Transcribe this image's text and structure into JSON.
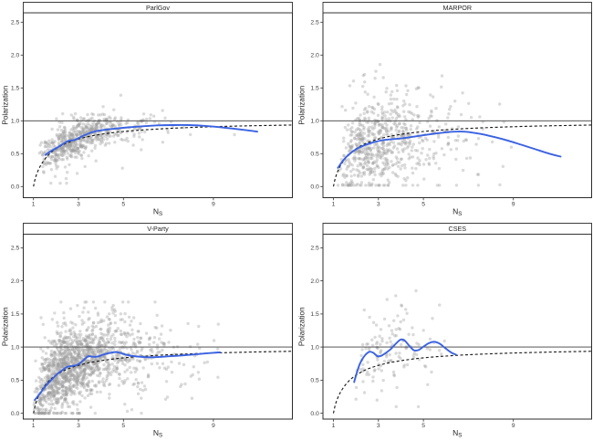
{
  "figure": {
    "background": "#ffffff"
  },
  "style": {
    "accent_blue": "#3a62e2",
    "scatter_color": "#9e9e9e",
    "scatter_opacity": 0.38,
    "dashed_color": "#151515",
    "hline_color": "#3d3d3d",
    "border_color": "#2b2b2b",
    "tick_text_color": "#404040",
    "title_text_color": "#262626"
  },
  "axes": {
    "x_label": "N",
    "x_label_sub": "S",
    "y_label": "Polarization",
    "x_ticks": [
      1,
      3,
      5,
      9
    ],
    "y_tick_labels": [
      "0.0",
      "0.5",
      "1.0",
      "1.5",
      "2.0",
      "2.5"
    ],
    "y_tick_values": [
      0,
      0.5,
      1,
      1.5,
      2,
      2.5
    ],
    "x_range": [
      0.55,
      12.55
    ],
    "y_range": [
      -0.15,
      2.65
    ],
    "hline_y": 1.0,
    "grid": "off",
    "legend": "none"
  },
  "chart_data": [
    {
      "type": "scatter",
      "title": "ParlGov",
      "loess": [
        [
          1.53,
          0.48
        ],
        [
          1.8,
          0.545
        ],
        [
          2.07,
          0.595
        ],
        [
          2.35,
          0.655
        ],
        [
          2.55,
          0.695
        ],
        [
          2.8,
          0.705
        ],
        [
          3.0,
          0.735
        ],
        [
          3.2,
          0.77
        ],
        [
          3.6,
          0.825
        ],
        [
          4.0,
          0.855
        ],
        [
          4.6,
          0.88
        ],
        [
          5.2,
          0.9
        ],
        [
          5.8,
          0.915
        ],
        [
          6.5,
          0.93
        ],
        [
          7.2,
          0.935
        ],
        [
          7.9,
          0.935
        ],
        [
          8.6,
          0.923
        ],
        [
          9.2,
          0.905
        ],
        [
          9.9,
          0.88
        ],
        [
          10.5,
          0.855
        ],
        [
          10.95,
          0.835
        ]
      ],
      "scatter_summary": {
        "n": 620,
        "x_logmean": 1.12,
        "x_logsd": 0.36,
        "x_range": [
          1.25,
          11.0
        ],
        "y_sd": 0.125,
        "p_wide": 0.12,
        "y_sd_wide": 0.3,
        "y_range": [
          0.05,
          1.52
        ],
        "seed": 101
      }
    },
    {
      "type": "scatter",
      "title": "MARPOR",
      "loess": [
        [
          1.2,
          0.285
        ],
        [
          1.45,
          0.405
        ],
        [
          1.7,
          0.49
        ],
        [
          2.0,
          0.565
        ],
        [
          2.4,
          0.63
        ],
        [
          2.8,
          0.675
        ],
        [
          3.2,
          0.705
        ],
        [
          3.6,
          0.72
        ],
        [
          4.0,
          0.732
        ],
        [
          4.5,
          0.755
        ],
        [
          5.0,
          0.78
        ],
        [
          5.5,
          0.805
        ],
        [
          6.0,
          0.825
        ],
        [
          6.4,
          0.835
        ],
        [
          6.8,
          0.835
        ],
        [
          7.2,
          0.82
        ],
        [
          7.7,
          0.79
        ],
        [
          8.2,
          0.75
        ],
        [
          8.8,
          0.695
        ],
        [
          9.4,
          0.63
        ],
        [
          10.0,
          0.565
        ],
        [
          10.6,
          0.5
        ],
        [
          11.1,
          0.455
        ]
      ],
      "scatter_summary": {
        "n": 680,
        "x_logmean": 1.13,
        "x_logsd": 0.42,
        "x_range": [
          1.2,
          10.6
        ],
        "y_sd": 0.32,
        "p_wide": 0.22,
        "y_sd_wide": 0.5,
        "y_range": [
          0.02,
          2.28
        ],
        "seed": 202
      }
    },
    {
      "type": "scatter",
      "title": "V-Party",
      "loess": [
        [
          1.06,
          0.2
        ],
        [
          1.3,
          0.305
        ],
        [
          1.55,
          0.415
        ],
        [
          1.8,
          0.505
        ],
        [
          2.05,
          0.59
        ],
        [
          2.3,
          0.655
        ],
        [
          2.5,
          0.7
        ],
        [
          2.7,
          0.715
        ],
        [
          2.9,
          0.725
        ],
        [
          3.1,
          0.765
        ],
        [
          3.3,
          0.825
        ],
        [
          3.45,
          0.862
        ],
        [
          3.65,
          0.852
        ],
        [
          3.85,
          0.855
        ],
        [
          4.1,
          0.885
        ],
        [
          4.4,
          0.91
        ],
        [
          4.65,
          0.925
        ],
        [
          4.85,
          0.912
        ],
        [
          5.1,
          0.885
        ],
        [
          5.45,
          0.863
        ],
        [
          5.9,
          0.85
        ],
        [
          6.3,
          0.845
        ],
        [
          6.7,
          0.852
        ],
        [
          7.1,
          0.862
        ],
        [
          7.6,
          0.873
        ],
        [
          8.1,
          0.887
        ],
        [
          8.6,
          0.902
        ],
        [
          9.05,
          0.915
        ],
        [
          9.3,
          0.92
        ]
      ],
      "scatter_summary": {
        "n": 1500,
        "x_logmean": 1.06,
        "x_logsd": 0.46,
        "x_range": [
          1.02,
          9.55
        ],
        "y_sd": 0.26,
        "p_wide": 0.18,
        "y_sd_wide": 0.45,
        "y_range": [
          0.0,
          1.68
        ],
        "seed": 303
      }
    },
    {
      "type": "scatter",
      "title": "CSES",
      "loess": [
        [
          1.92,
          0.47
        ],
        [
          2.05,
          0.625
        ],
        [
          2.2,
          0.765
        ],
        [
          2.4,
          0.875
        ],
        [
          2.6,
          0.928
        ],
        [
          2.78,
          0.912
        ],
        [
          2.95,
          0.862
        ],
        [
          3.12,
          0.868
        ],
        [
          3.3,
          0.905
        ],
        [
          3.55,
          0.97
        ],
        [
          3.8,
          1.06
        ],
        [
          4.0,
          1.115
        ],
        [
          4.18,
          1.095
        ],
        [
          4.38,
          1.015
        ],
        [
          4.58,
          0.952
        ],
        [
          4.78,
          0.955
        ],
        [
          5.0,
          1.005
        ],
        [
          5.25,
          1.06
        ],
        [
          5.5,
          1.08
        ],
        [
          5.75,
          1.045
        ],
        [
          6.0,
          0.975
        ],
        [
          6.25,
          0.915
        ],
        [
          6.45,
          0.885
        ]
      ],
      "scatter_summary": {
        "n": 135,
        "x_logmean": 1.23,
        "x_logsd": 0.29,
        "x_range": [
          1.95,
          6.6
        ],
        "y_sd": 0.31,
        "p_wide": 0.15,
        "y_sd_wide": 0.45,
        "y_range": [
          0.1,
          1.85
        ],
        "seed": 404
      }
    }
  ],
  "null_model_curve": [
    [
      1,
      0
    ],
    [
      1.1,
      0.147
    ],
    [
      1.25,
      0.276
    ],
    [
      1.4,
      0.367
    ],
    [
      1.6,
      0.456
    ],
    [
      1.8,
      0.523
    ],
    [
      2,
      0.574
    ],
    [
      2.3,
      0.634
    ],
    [
      2.6,
      0.678
    ],
    [
      3,
      0.723
    ],
    [
      3.5,
      0.764
    ],
    [
      4,
      0.794
    ],
    [
      4.5,
      0.818
    ],
    [
      5,
      0.837
    ],
    [
      5.5,
      0.852
    ],
    [
      6,
      0.864
    ],
    [
      7,
      0.884
    ],
    [
      8,
      0.898
    ],
    [
      9,
      0.91
    ],
    [
      10,
      0.919
    ],
    [
      11,
      0.927
    ],
    [
      12.6,
      0.936
    ]
  ]
}
